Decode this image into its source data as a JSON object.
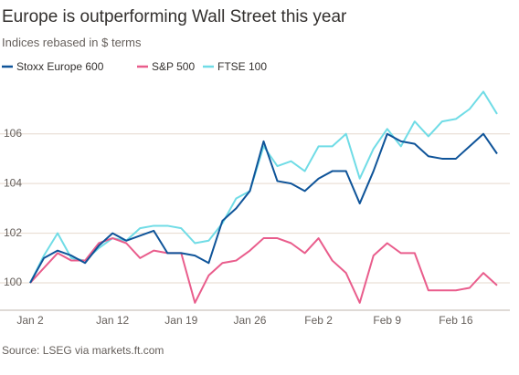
{
  "chart_data": {
    "type": "line",
    "title": "Europe is outperforming Wall Street this year",
    "subtitle": "Indices rebased in $ terms",
    "source": "Source: LSEG via markets.ft.com",
    "categories": [
      "Jan 2",
      null,
      null,
      null,
      null,
      null,
      "Jan 12",
      null,
      null,
      null,
      null,
      "Jan 19",
      null,
      null,
      null,
      null,
      "Jan 26",
      null,
      null,
      null,
      null,
      "Feb 2",
      null,
      null,
      null,
      null,
      "Feb 9",
      null,
      null,
      null,
      null,
      "Feb 16",
      null,
      null,
      null
    ],
    "series": [
      {
        "name": "Stoxx Europe 600",
        "color": "#0f5499",
        "values": [
          100.0,
          101.0,
          101.3,
          101.1,
          100.8,
          101.5,
          102.0,
          101.7,
          101.9,
          102.1,
          101.2,
          101.2,
          101.1,
          100.8,
          102.5,
          103.0,
          103.7,
          105.7,
          104.1,
          104.0,
          103.7,
          104.2,
          104.5,
          104.5,
          103.2,
          104.5,
          106.0,
          105.7,
          105.6,
          105.1,
          105.0,
          105.0,
          105.5,
          106.0,
          105.2
        ]
      },
      {
        "name": "S&P 500",
        "color": "#e95d8c",
        "values": [
          100.0,
          100.6,
          101.2,
          100.9,
          100.9,
          101.6,
          101.8,
          101.6,
          101.0,
          101.3,
          101.2,
          101.2,
          99.2,
          100.3,
          100.8,
          100.9,
          101.3,
          101.8,
          101.8,
          101.6,
          101.2,
          101.8,
          100.9,
          100.4,
          99.2,
          101.1,
          101.6,
          101.2,
          101.2,
          99.7,
          99.7,
          99.7,
          99.8,
          100.4,
          99.9
        ]
      },
      {
        "name": "FTSE 100",
        "color": "#70dce6",
        "values": [
          100.0,
          101.1,
          102.0,
          101.0,
          100.9,
          101.4,
          101.8,
          101.7,
          102.2,
          102.3,
          102.3,
          102.2,
          101.6,
          101.7,
          102.4,
          103.4,
          103.7,
          105.5,
          104.7,
          104.9,
          104.5,
          105.5,
          105.5,
          106.0,
          104.2,
          105.4,
          106.2,
          105.5,
          106.5,
          105.9,
          106.5,
          106.6,
          107.0,
          107.7,
          106.8
        ]
      }
    ],
    "ylim": [
      98.9,
      107.9
    ],
    "yticks": [
      100,
      102,
      104,
      106
    ],
    "grid": true
  }
}
